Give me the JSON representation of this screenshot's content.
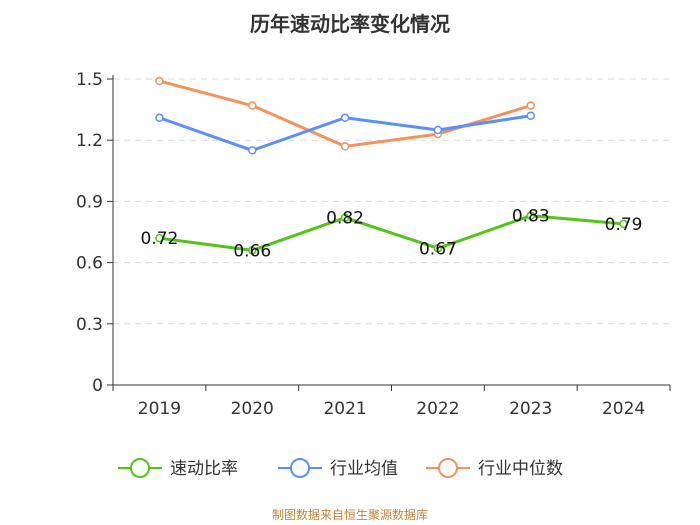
{
  "chart_data": {
    "type": "line",
    "title": "历年速动比率变化情况",
    "categories": [
      "2019",
      "2020",
      "2021",
      "2022",
      "2023",
      "2024"
    ],
    "ylim": [
      0,
      1.5
    ],
    "yticks": [
      "0",
      "0.3",
      "0.6",
      "0.9",
      "1.2",
      "1.5"
    ],
    "grid": true,
    "legend_position": "bottom",
    "series": [
      {
        "name": "速动比率",
        "color": "#52c41a",
        "values": [
          0.72,
          0.66,
          0.82,
          0.67,
          0.83,
          0.79
        ],
        "labels": [
          "0.72",
          "0.66",
          "0.82",
          "0.67",
          "0.83",
          "0.79"
        ]
      },
      {
        "name": "行业均值",
        "color": "#5b8ff9",
        "values": [
          1.31,
          1.15,
          1.31,
          1.25,
          1.32,
          null
        ]
      },
      {
        "name": "行业中位数",
        "color": "#f5915a",
        "values": [
          1.49,
          1.37,
          1.17,
          1.23,
          1.37,
          null
        ]
      }
    ]
  },
  "source": "制图数据来自恒生聚源数据库"
}
